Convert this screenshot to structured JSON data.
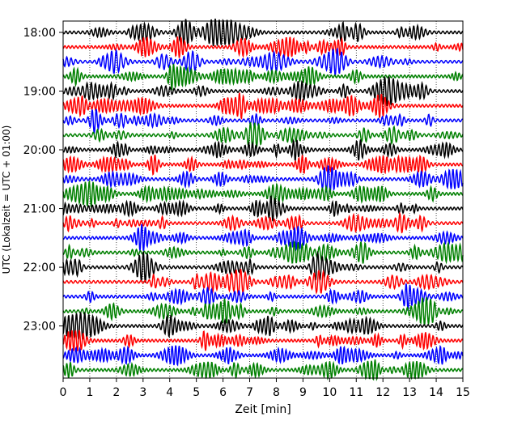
{
  "chart_data": {
    "type": "line",
    "xlabel": "Zeit  [min]",
    "ylabel": "UTC (Lokalzeit = UTC + 01:00)",
    "xlim": [
      0,
      15
    ],
    "x_ticks": [
      "0",
      "1",
      "2",
      "3",
      "4",
      "5",
      "6",
      "7",
      "8",
      "9",
      "10",
      "11",
      "12",
      "13",
      "14",
      "15"
    ],
    "y_ticks": [
      "18:00",
      "19:00",
      "20:00",
      "21:00",
      "22:00",
      "23:00"
    ],
    "grid": "vertical dotted",
    "trace_interval_min": 15,
    "first_trace": "18:00",
    "last_trace": "23:45",
    "trace_count": 24,
    "trace_colors": [
      "#000000",
      "#ff0000",
      "#0000ff",
      "#008000"
    ]
  }
}
